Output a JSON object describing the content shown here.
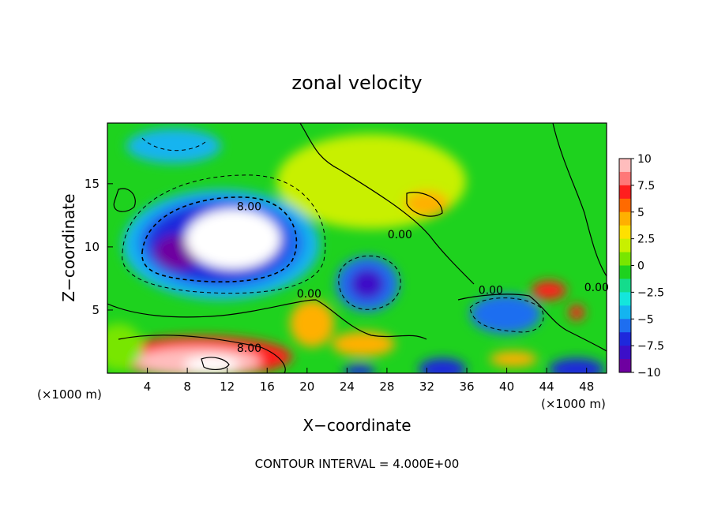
{
  "chart_data": {
    "type": "heatmap",
    "title": "zonal velocity",
    "xlabel": "X−coordinate",
    "ylabel": "Z−coordinate",
    "x_unit_left": "(×1000 m)",
    "x_unit_right": "(×1000 m)",
    "footer": "CONTOUR INTERVAL = 4.000E+00",
    "xlim": [
      0,
      50
    ],
    "ylim": [
      0,
      19.8
    ],
    "x_ticks": [
      4,
      8,
      12,
      16,
      20,
      24,
      28,
      32,
      36,
      40,
      44,
      48
    ],
    "x_tick_labels": [
      "4",
      "8",
      "12",
      "16",
      "20",
      "24",
      "28",
      "32",
      "36",
      "40",
      "44",
      "48"
    ],
    "y_ticks": [
      5,
      10,
      15
    ],
    "y_tick_labels": [
      "5",
      "10",
      "15"
    ],
    "colorbar": {
      "range": [
        -10,
        10
      ],
      "tick_values": [
        10,
        7.5,
        5,
        2.5,
        0,
        -2.5,
        -5,
        -7.5,
        -10
      ],
      "tick_labels": [
        "10",
        "7.5",
        "5",
        "2.5",
        "0",
        "−2.5",
        "−5",
        "−7.5",
        "−10"
      ],
      "colors": [
        "#ffbdbd",
        "#ff7878",
        "#ff1e1e",
        "#ff6a00",
        "#ffb000",
        "#ffe000",
        "#c8f000",
        "#78e600",
        "#1ed21e",
        "#14dc8c",
        "#14e6dc",
        "#14b4f0",
        "#1e6ef0",
        "#1e28dc",
        "#3c0fc8",
        "#6e00a0"
      ]
    },
    "contour_labels": [
      {
        "text": "8.00",
        "x": 14.2,
        "y": 13.2
      },
      {
        "text": "0.00",
        "x": 29.3,
        "y": 11.0
      },
      {
        "text": "0.00",
        "x": 20.2,
        "y": 6.3
      },
      {
        "text": "8.00",
        "x": 14.2,
        "y": 2.0
      },
      {
        "text": "0.00",
        "x": 38.4,
        "y": 6.6
      },
      {
        "text": "0.00",
        "x": 49.0,
        "y": 6.8
      }
    ]
  }
}
